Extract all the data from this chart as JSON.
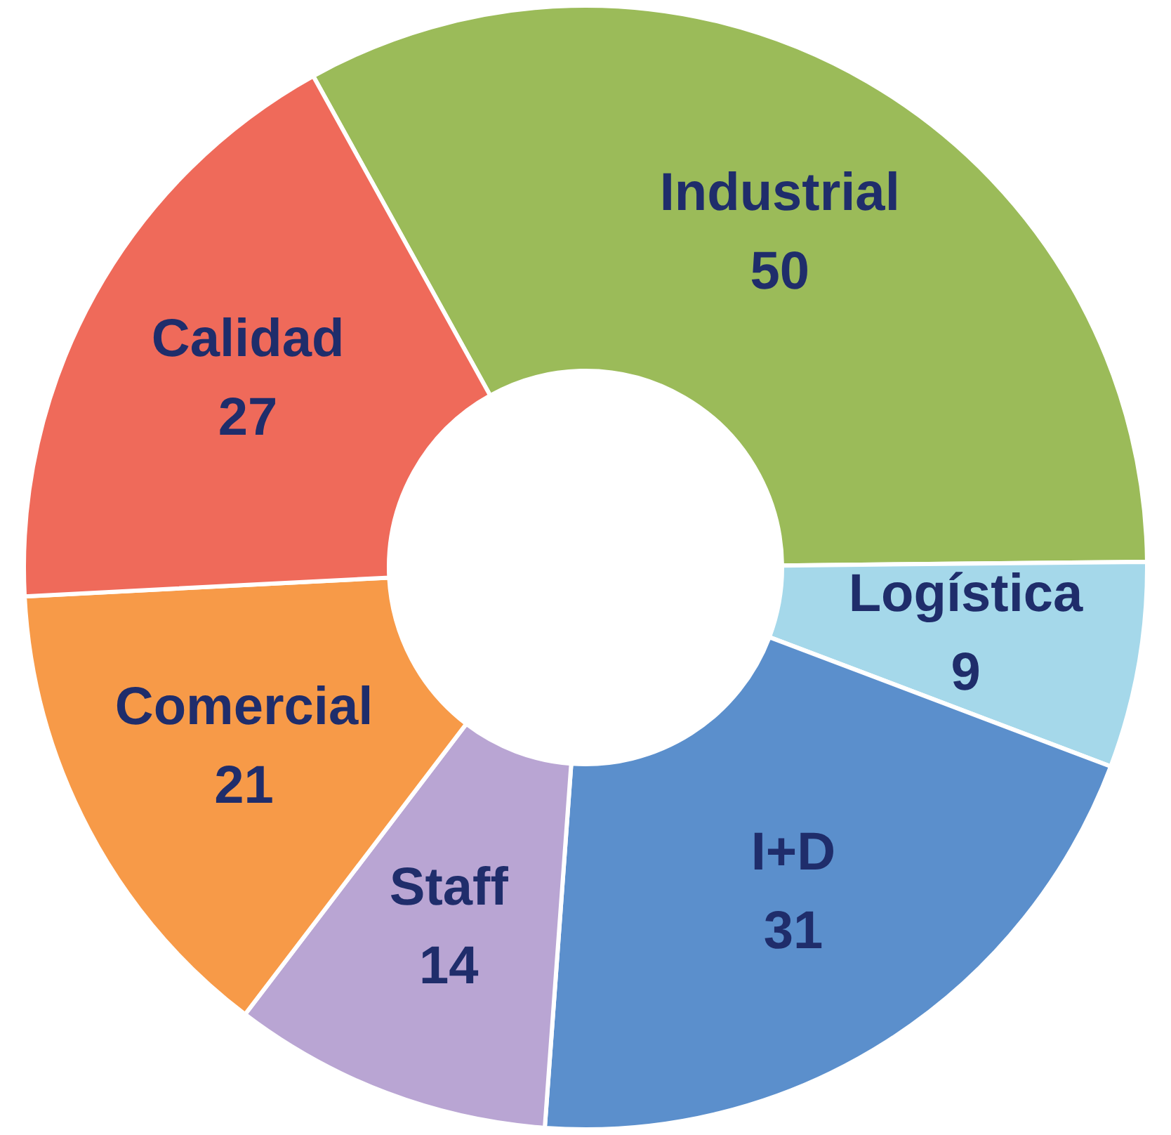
{
  "chart_data": {
    "type": "donut",
    "categories": [
      "Industrial",
      "Logística",
      "I+D",
      "Staff",
      "Comercial",
      "Calidad"
    ],
    "values": [
      50,
      9,
      31,
      14,
      21,
      27
    ],
    "colors": [
      "#9bbb59",
      "#a5d8ea",
      "#5b8fcc",
      "#b9a5d3",
      "#f79a48",
      "#ef6a5a"
    ],
    "data_labels": true
  }
}
